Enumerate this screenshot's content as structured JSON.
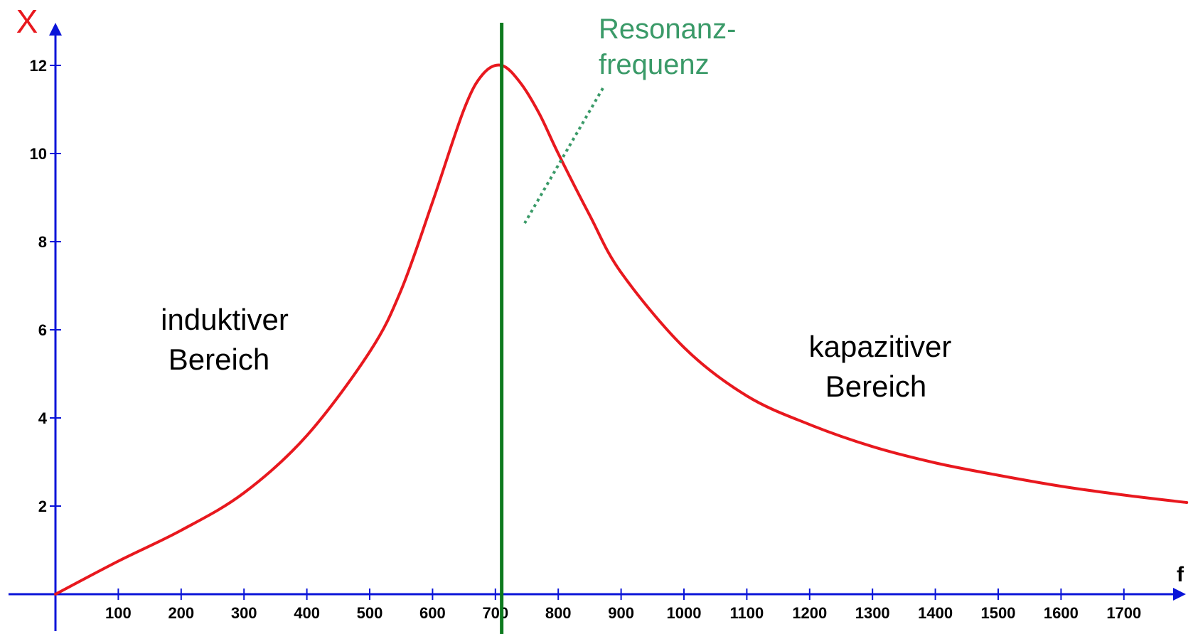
{
  "chart_data": {
    "type": "line",
    "title": "",
    "xlabel": "f",
    "ylabel": "X",
    "xlim": [
      0,
      1800
    ],
    "ylim": [
      0,
      12.5
    ],
    "x_ticks": [
      100,
      200,
      300,
      400,
      500,
      600,
      700,
      800,
      900,
      1000,
      1100,
      1200,
      1300,
      1400,
      1500,
      1600,
      1700
    ],
    "y_ticks": [
      2,
      4,
      6,
      8,
      10,
      12
    ],
    "grid": false,
    "legend": "none",
    "series": [
      {
        "name": "",
        "color": "#e8181e",
        "x": [
          0,
          100,
          200,
          300,
          400,
          500,
          550,
          600,
          650,
          680,
          710,
          740,
          770,
          800,
          850,
          900,
          1000,
          1100,
          1200,
          1300,
          1400,
          1500,
          1600,
          1700,
          1800
        ],
        "y": [
          0,
          0.75,
          1.45,
          2.3,
          3.6,
          5.5,
          6.9,
          8.9,
          11.0,
          11.8,
          12.0,
          11.6,
          10.9,
          10.0,
          8.6,
          7.3,
          5.6,
          4.5,
          3.85,
          3.35,
          2.98,
          2.7,
          2.45,
          2.25,
          2.08
        ]
      }
    ],
    "annotations": {
      "resonance_frequency": 710,
      "resonance_label_lines": [
        "Resonanz-",
        "frequenz"
      ],
      "left_region_lines": [
        "induktiver",
        "Bereich"
      ],
      "right_region_lines": [
        "kapazitiver",
        "Bereich"
      ]
    },
    "colors": {
      "axes": "#0a14d8",
      "curve": "#e8181e",
      "resonance_line": "#0d7a1e",
      "resonance_text": "#3a9a68",
      "y_label": "#e8181e"
    }
  }
}
